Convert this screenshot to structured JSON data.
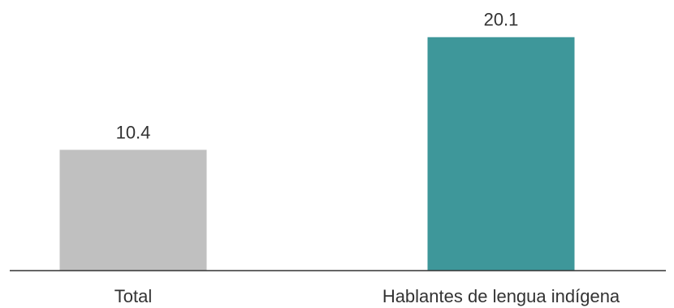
{
  "chart_data": {
    "type": "bar",
    "categories": [
      "Total",
      "Hablantes de lengua indígena"
    ],
    "values": [
      10.4,
      20.1
    ],
    "value_labels": [
      "10.4",
      "20.1"
    ],
    "bar_colors": [
      "#c0c0c0",
      "#3e979a"
    ],
    "axis_color": "#333333",
    "title": "",
    "xlabel": "",
    "ylabel": "",
    "ylim": [
      0,
      23.3
    ],
    "grid": false,
    "legend": "none"
  }
}
